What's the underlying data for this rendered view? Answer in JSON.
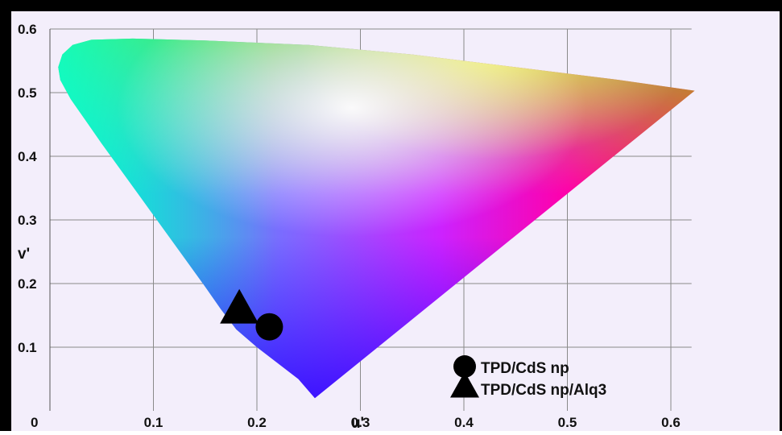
{
  "chart_data": {
    "type": "scatter",
    "title": "",
    "xlabel": "u'",
    "ylabel": "v'",
    "xlim": [
      0,
      0.62
    ],
    "ylim": [
      0,
      0.6
    ],
    "x_ticks": [
      {
        "value": 0,
        "label": "0"
      },
      {
        "value": 0.1,
        "label": "0.1"
      },
      {
        "value": 0.2,
        "label": "0.2"
      },
      {
        "value": 0.3,
        "label": "0.3"
      },
      {
        "value": 0.4,
        "label": "0.4"
      },
      {
        "value": 0.5,
        "label": "0.5"
      },
      {
        "value": 0.6,
        "label": "0.6"
      }
    ],
    "y_ticks": [
      {
        "value": 0.1,
        "label": "0.1"
      },
      {
        "value": 0.2,
        "label": "0.2"
      },
      {
        "value": 0.3,
        "label": "0.3"
      },
      {
        "value": 0.4,
        "label": "0.4"
      },
      {
        "value": 0.5,
        "label": "0.5"
      },
      {
        "value": 0.6,
        "label": "0.6"
      }
    ],
    "grid": true,
    "legend_position": "bottom-right",
    "gamut_boundary": [
      [
        0.623,
        0.503
      ],
      [
        0.55,
        0.52
      ],
      [
        0.45,
        0.54
      ],
      [
        0.35,
        0.56
      ],
      [
        0.25,
        0.575
      ],
      [
        0.15,
        0.582
      ],
      [
        0.08,
        0.585
      ],
      [
        0.04,
        0.583
      ],
      [
        0.022,
        0.575
      ],
      [
        0.012,
        0.56
      ],
      [
        0.008,
        0.54
      ],
      [
        0.01,
        0.52
      ],
      [
        0.02,
        0.49
      ],
      [
        0.035,
        0.455
      ],
      [
        0.05,
        0.42
      ],
      [
        0.07,
        0.375
      ],
      [
        0.09,
        0.33
      ],
      [
        0.11,
        0.285
      ],
      [
        0.13,
        0.24
      ],
      [
        0.15,
        0.195
      ],
      [
        0.165,
        0.16
      ],
      [
        0.18,
        0.128
      ],
      [
        0.2,
        0.1
      ],
      [
        0.22,
        0.075
      ],
      [
        0.24,
        0.05
      ],
      [
        0.256,
        0.02
      ]
    ],
    "series": [
      {
        "name": "TPD/CdS np",
        "marker": "circle",
        "color": "#000000",
        "points": [
          [
            0.212,
            0.132
          ]
        ]
      },
      {
        "name": "TPD/CdS np/Alq3",
        "marker": "triangle",
        "color": "#000000",
        "points": [
          [
            0.183,
            0.16
          ]
        ]
      }
    ]
  }
}
